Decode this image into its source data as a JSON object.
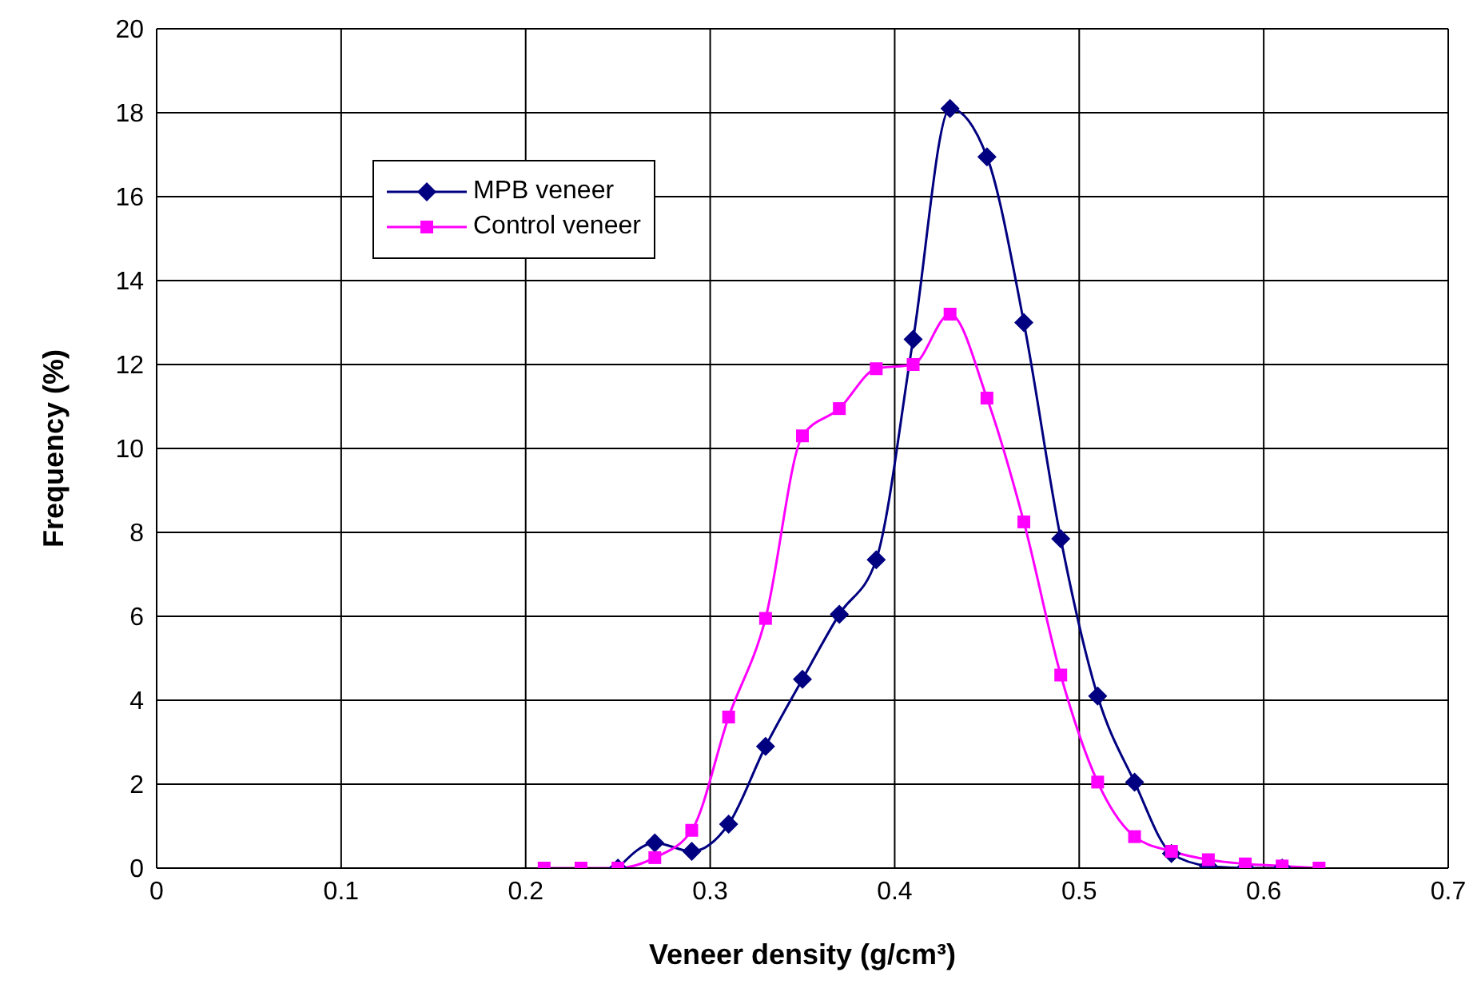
{
  "chart_data": {
    "type": "line",
    "xlabel": "Veneer density (g/cm³)",
    "ylabel": "Frequency (%)",
    "xlim": [
      0,
      0.7
    ],
    "xticks": [
      0,
      0.1,
      0.2,
      0.3,
      0.4,
      0.5,
      0.6,
      0.7
    ],
    "ylim": [
      0,
      20
    ],
    "yticks": [
      0,
      2,
      4,
      6,
      8,
      10,
      12,
      14,
      16,
      18,
      20
    ],
    "grid": true,
    "legend": "top left",
    "series": [
      {
        "name": "MPB veneer",
        "color": "#000080",
        "marker": "diamond",
        "x": [
          0.25,
          0.27,
          0.29,
          0.31,
          0.33,
          0.35,
          0.37,
          0.39,
          0.41,
          0.43,
          0.45,
          0.47,
          0.49,
          0.51,
          0.53,
          0.55,
          0.57,
          0.59,
          0.61
        ],
        "values": [
          0,
          0.6,
          0.4,
          1.05,
          2.9,
          4.5,
          6.05,
          7.35,
          12.6,
          18.1,
          16.95,
          13.0,
          7.85,
          4.1,
          2.05,
          0.35,
          0.05,
          0,
          0
        ]
      },
      {
        "name": "Control veneer",
        "color": "#ff00ff",
        "marker": "square",
        "x": [
          0.21,
          0.23,
          0.25,
          0.27,
          0.29,
          0.31,
          0.33,
          0.35,
          0.37,
          0.39,
          0.41,
          0.43,
          0.45,
          0.47,
          0.49,
          0.51,
          0.53,
          0.55,
          0.57,
          0.59,
          0.61,
          0.63
        ],
        "values": [
          0,
          0,
          0,
          0.25,
          0.9,
          3.6,
          5.95,
          10.3,
          10.95,
          11.9,
          12.0,
          13.2,
          11.2,
          8.25,
          4.6,
          2.05,
          0.75,
          0.4,
          0.2,
          0.1,
          0.05,
          0
        ]
      }
    ]
  }
}
